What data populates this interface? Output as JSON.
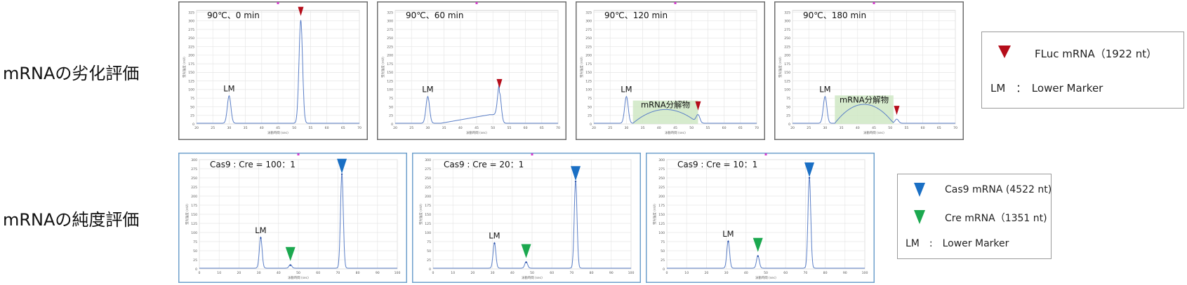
{
  "rows": {
    "degradation_label": "mRNAの劣化評価",
    "purity_label": "mRNAの純度評価"
  },
  "legend_top": {
    "fluc": "FLuc mRNA（1922 nt）",
    "lm": "LM　：　Lower Marker"
  },
  "legend_bottom": {
    "cas9": "Cas9 mRNA (4522 nt)",
    "cre": "Cre mRNA（1351 nt)",
    "lm": "LM　:　Lower Marker"
  },
  "colors": {
    "trace": "#5b7fc7",
    "fluc_marker": "#b50d1a",
    "cas9_marker": "#1a6fc4",
    "cre_marker": "#1ba84f",
    "degradation_fill": "#cfe8c4",
    "top_frame": "#6e6e6e",
    "bottom_frame": "#6fa0cc"
  },
  "chart_data": [
    {
      "type": "line",
      "group": "degradation",
      "title": "90℃、0 min",
      "xlim": [
        20,
        70
      ],
      "ylim": [
        0,
        330
      ],
      "xticks": [
        20,
        25,
        30,
        35,
        40,
        45,
        50,
        55,
        60,
        65,
        70
      ],
      "yticks": [
        0,
        25,
        50,
        75,
        100,
        125,
        150,
        175,
        200,
        225,
        250,
        275,
        300,
        325
      ],
      "xlabel": "泳動時間 (sec)",
      "ylabel": "蛍光強度 (mV)",
      "peaks": [
        {
          "label": "LM",
          "x": 30,
          "y": 80
        },
        {
          "label": "FLuc",
          "x": 52,
          "y": 300
        }
      ],
      "degradation_label": "",
      "degradation_range": null,
      "degradation_height": 0
    },
    {
      "type": "line",
      "group": "degradation",
      "title": "90℃、60 min",
      "xlim": [
        20,
        70
      ],
      "ylim": [
        0,
        330
      ],
      "xticks": [
        20,
        25,
        30,
        35,
        40,
        45,
        50,
        55,
        60,
        65,
        70
      ],
      "yticks": [
        0,
        25,
        50,
        75,
        100,
        125,
        150,
        175,
        200,
        225,
        250,
        275,
        300,
        325
      ],
      "xlabel": "泳動時間 (sec)",
      "ylabel": "蛍光強度 (mV)",
      "peaks": [
        {
          "label": "LM",
          "x": 30,
          "y": 78
        },
        {
          "label": "FLuc",
          "x": 52,
          "y": 90
        }
      ],
      "degradation_label": "",
      "degradation_range": [
        34,
        52
      ],
      "degradation_height": 25
    },
    {
      "type": "line",
      "group": "degradation",
      "title": "90℃、120 min",
      "xlim": [
        20,
        70
      ],
      "ylim": [
        0,
        330
      ],
      "xticks": [
        20,
        25,
        30,
        35,
        40,
        45,
        50,
        55,
        60,
        65,
        70
      ],
      "yticks": [
        0,
        25,
        50,
        75,
        100,
        125,
        150,
        175,
        200,
        225,
        250,
        275,
        300,
        325
      ],
      "xlabel": "泳動時間 (sec)",
      "ylabel": "蛍光強度 (mV)",
      "peaks": [
        {
          "label": "LM",
          "x": 30,
          "y": 78
        },
        {
          "label": "FLuc",
          "x": 52,
          "y": 25
        }
      ],
      "degradation_label": "mRNA分解物",
      "degradation_range": [
        32,
        52
      ],
      "degradation_height": 40
    },
    {
      "type": "line",
      "group": "degradation",
      "title": "90℃、180 min",
      "xlim": [
        20,
        70
      ],
      "ylim": [
        0,
        330
      ],
      "xticks": [
        20,
        25,
        30,
        35,
        40,
        45,
        50,
        55,
        60,
        65,
        70
      ],
      "yticks": [
        0,
        25,
        50,
        75,
        100,
        125,
        150,
        175,
        200,
        225,
        250,
        275,
        300,
        325
      ],
      "xlabel": "泳動時間 (sec)",
      "ylabel": "蛍光強度 (mV)",
      "peaks": [
        {
          "label": "LM",
          "x": 30,
          "y": 78
        },
        {
          "label": "FLuc",
          "x": 52,
          "y": 12
        }
      ],
      "degradation_label": "mRNA分解物",
      "degradation_range": [
        33,
        51
      ],
      "degradation_height": 55
    },
    {
      "type": "line",
      "group": "purity",
      "title": "Cas9 : Cre = 100：1",
      "xlim": [
        0,
        100
      ],
      "ylim": [
        0,
        300
      ],
      "xticks": [
        0,
        10,
        20,
        30,
        40,
        50,
        60,
        70,
        80,
        90,
        100
      ],
      "yticks": [
        0,
        25,
        50,
        75,
        100,
        125,
        150,
        175,
        200,
        225,
        250,
        275,
        300
      ],
      "xlabel": "泳動時間 (sec)",
      "ylabel": "蛍光強度 (mV)",
      "peaks": [
        {
          "label": "LM",
          "x": 31,
          "y": 85
        },
        {
          "label": "Cre",
          "x": 46,
          "y": 10
        },
        {
          "label": "Cas9",
          "x": 72,
          "y": 260
        }
      ]
    },
    {
      "type": "line",
      "group": "purity",
      "title": "Cas9 : Cre = 20：1",
      "xlim": [
        0,
        100
      ],
      "ylim": [
        0,
        300
      ],
      "xticks": [
        0,
        10,
        20,
        30,
        40,
        50,
        60,
        70,
        80,
        90,
        100
      ],
      "yticks": [
        0,
        25,
        50,
        75,
        100,
        125,
        150,
        175,
        200,
        225,
        250,
        275,
        300
      ],
      "xlabel": "泳動時間 (sec)",
      "ylabel": "蛍光強度 (mV)",
      "peaks": [
        {
          "label": "LM",
          "x": 31,
          "y": 70
        },
        {
          "label": "Cre",
          "x": 47,
          "y": 18
        },
        {
          "label": "Cas9",
          "x": 72,
          "y": 240
        }
      ]
    },
    {
      "type": "line",
      "group": "purity",
      "title": "Cas9 : Cre = 10：1",
      "xlim": [
        0,
        100
      ],
      "ylim": [
        0,
        300
      ],
      "xticks": [
        0,
        10,
        20,
        30,
        40,
        50,
        60,
        70,
        80,
        90,
        100
      ],
      "yticks": [
        0,
        25,
        50,
        75,
        100,
        125,
        150,
        175,
        200,
        225,
        250,
        275,
        300
      ],
      "xlabel": "泳動時間 (sec)",
      "ylabel": "蛍光強度 (mV)",
      "peaks": [
        {
          "label": "LM",
          "x": 31,
          "y": 75
        },
        {
          "label": "Cre",
          "x": 46,
          "y": 35
        },
        {
          "label": "Cas9",
          "x": 72,
          "y": 250
        }
      ]
    }
  ]
}
